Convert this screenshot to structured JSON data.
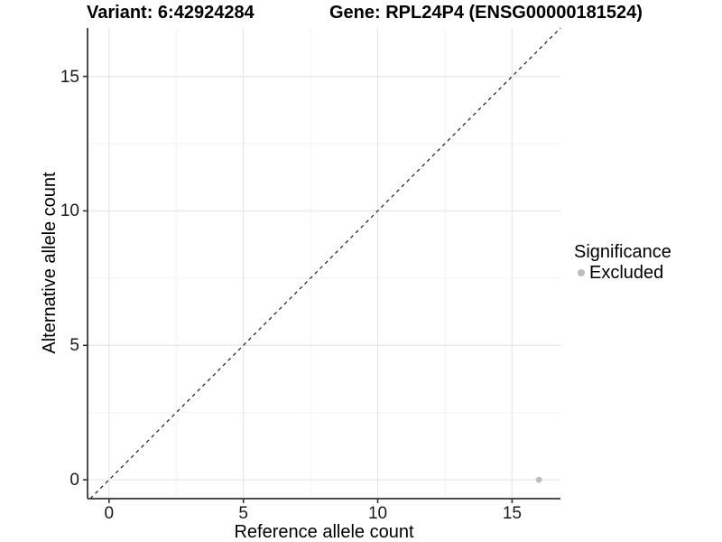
{
  "figure": {
    "title_left": "Variant: 6:42924284",
    "title_right": "Gene: RPL24P4 (ENSG00000181524)"
  },
  "chart_data": {
    "type": "scatter",
    "title": "Variant: 6:42924284  Gene: RPL24P4 (ENSG00000181524)",
    "xlabel": "Reference allele count",
    "ylabel": "Alternative allele count",
    "xlim": [
      -0.8,
      16.8
    ],
    "ylim": [
      -0.7,
      16.8
    ],
    "x_ticks": [
      0,
      5,
      10,
      15
    ],
    "y_ticks": [
      0,
      5,
      10,
      15
    ],
    "x_minor_ticks": [
      2.5,
      7.5,
      12.5
    ],
    "y_minor_ticks": [
      2.5,
      7.5,
      12.5
    ],
    "grid": true,
    "identity_line": {
      "type": "y=x",
      "style": "dashed",
      "color": "#1a1a1a"
    },
    "series": [
      {
        "name": "Excluded",
        "color": "#bdbdbd",
        "points": [
          {
            "x": 16,
            "y": 0
          }
        ]
      }
    ],
    "legend": {
      "title": "Significance",
      "position": "right",
      "items": [
        {
          "label": "Excluded",
          "color": "#bdbdbd"
        }
      ]
    },
    "colors": {
      "panel_background": "#ffffff",
      "grid_major": "#e8e8e8",
      "grid_minor": "#f3f3f3",
      "axis_line": "#4d4d4d",
      "tick_mark": "#333333",
      "point": "#bdbdbd"
    }
  }
}
